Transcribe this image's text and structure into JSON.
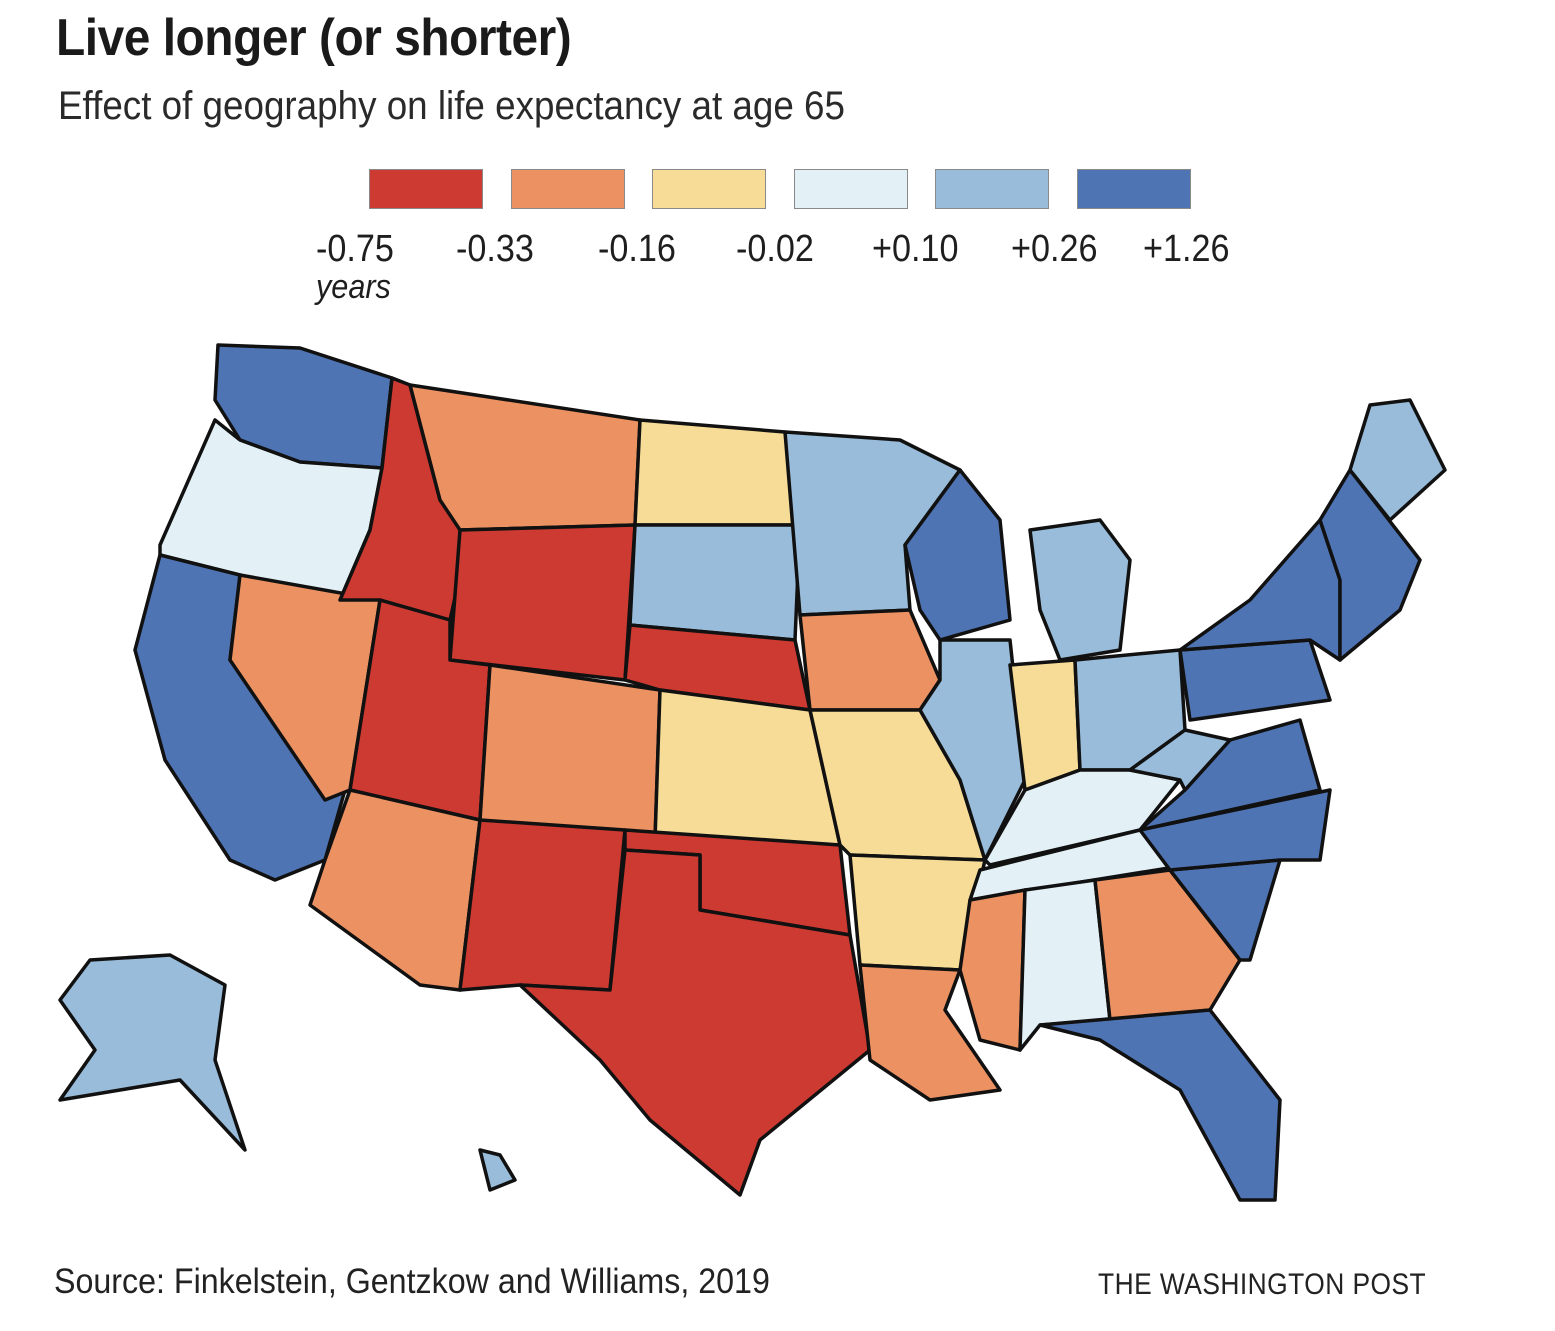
{
  "header": {
    "title": "Live longer (or shorter)",
    "subtitle": "Effect of geography on life expectancy at age 65"
  },
  "legend": {
    "unit": "years",
    "bins": [
      {
        "from": "-0.75",
        "to": "-0.33",
        "color": "#cc3a32"
      },
      {
        "from": "-0.33",
        "to": "-0.16",
        "color": "#ec9262"
      },
      {
        "from": "-0.16",
        "to": "-0.02",
        "color": "#f7dc97"
      },
      {
        "from": "-0.02",
        "to": "+0.10",
        "color": "#e3f1f6"
      },
      {
        "from": "+0.10",
        "to": "+0.26",
        "color": "#98bcd9"
      },
      {
        "from": "+0.26",
        "to": "+1.26",
        "color": "#4f74b4"
      }
    ],
    "ticks": [
      "-0.75",
      "-0.33",
      "-0.16",
      "-0.02",
      "+0.10",
      "+0.26",
      "+1.26"
    ]
  },
  "chart_data": {
    "type": "choropleth",
    "title": "Live longer (or shorter)",
    "subtitle": "Effect of geography on life expectancy at age 65",
    "unit": "years",
    "scale_breaks": [
      -0.75,
      -0.33,
      -0.16,
      -0.02,
      0.1,
      0.26,
      1.26
    ],
    "regions_dominant_bin": [
      {
        "region": "Washington",
        "bin": 5
      },
      {
        "region": "Oregon",
        "bin": 3
      },
      {
        "region": "California",
        "bin": 5
      },
      {
        "region": "Nevada",
        "bin": 1
      },
      {
        "region": "Idaho",
        "bin": 0
      },
      {
        "region": "Montana",
        "bin": 1
      },
      {
        "region": "Wyoming",
        "bin": 0
      },
      {
        "region": "Utah",
        "bin": 0
      },
      {
        "region": "Arizona",
        "bin": 1
      },
      {
        "region": "Colorado",
        "bin": 1
      },
      {
        "region": "New Mexico",
        "bin": 0
      },
      {
        "region": "North Dakota",
        "bin": 2
      },
      {
        "region": "South Dakota",
        "bin": 4
      },
      {
        "region": "Nebraska",
        "bin": 0
      },
      {
        "region": "Kansas",
        "bin": 2
      },
      {
        "region": "Oklahoma",
        "bin": 0
      },
      {
        "region": "Texas",
        "bin": 0
      },
      {
        "region": "Minnesota",
        "bin": 4
      },
      {
        "region": "Iowa",
        "bin": 1
      },
      {
        "region": "Missouri",
        "bin": 2
      },
      {
        "region": "Arkansas",
        "bin": 2
      },
      {
        "region": "Louisiana",
        "bin": 1
      },
      {
        "region": "Wisconsin",
        "bin": 5
      },
      {
        "region": "Illinois",
        "bin": 4
      },
      {
        "region": "Michigan",
        "bin": 4
      },
      {
        "region": "Indiana",
        "bin": 2
      },
      {
        "region": "Ohio",
        "bin": 4
      },
      {
        "region": "Kentucky",
        "bin": 3
      },
      {
        "region": "Tennessee",
        "bin": 3
      },
      {
        "region": "Mississippi",
        "bin": 1
      },
      {
        "region": "Alabama",
        "bin": 3
      },
      {
        "region": "Georgia",
        "bin": 1
      },
      {
        "region": "Florida",
        "bin": 5
      },
      {
        "region": "South Carolina",
        "bin": 5
      },
      {
        "region": "North Carolina",
        "bin": 5
      },
      {
        "region": "Virginia",
        "bin": 5
      },
      {
        "region": "West Virginia",
        "bin": 4
      },
      {
        "region": "Pennsylvania",
        "bin": 5
      },
      {
        "region": "New York",
        "bin": 5
      },
      {
        "region": "New England",
        "bin": 5
      },
      {
        "region": "Maine",
        "bin": 4
      },
      {
        "region": "Alaska",
        "bin": 4
      },
      {
        "region": "Hawaii",
        "bin": 4
      }
    ]
  },
  "footer": {
    "source": "Source: Finkelstein, Gentzkow and Williams, 2019",
    "credit": "THE WASHINGTON POST"
  }
}
